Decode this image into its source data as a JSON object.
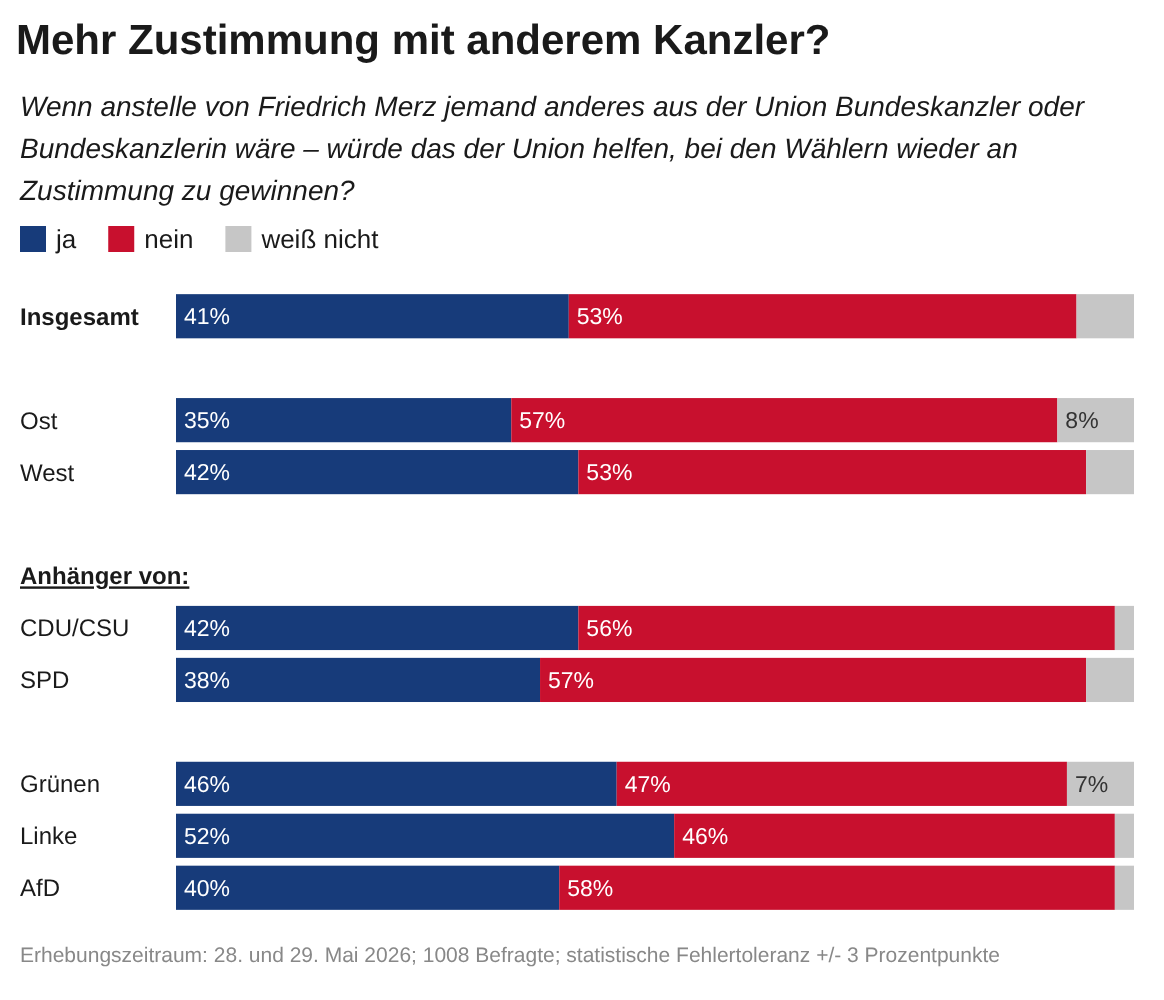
{
  "chart_data": {
    "type": "bar",
    "orientation": "horizontal",
    "stacked": true,
    "title": "Mehr Zustimmung mit anderem Kanzler?",
    "subtitle": "Wenn anstelle von Friedrich Merz jemand anderes aus der Union Bundeskanzler oder Bundeskanzlerin wäre – würde das der Union helfen, bei den Wählern wieder an Zustimmung zu gewinnen?",
    "categories": [
      "Insgesamt",
      null,
      "Ost",
      "West",
      null,
      null,
      "CDU/CSU",
      "SPD",
      null,
      "Grünen",
      "Linke",
      "AfD"
    ],
    "series": [
      {
        "name": "ja",
        "color": "#173b7a",
        "values": [
          41,
          null,
          35,
          42,
          null,
          null,
          42,
          38,
          null,
          46,
          52,
          40
        ],
        "value_labels": [
          "41%",
          null,
          "35%",
          "42%",
          null,
          null,
          "42%",
          "38%",
          null,
          "46%",
          "52%",
          "40%"
        ]
      },
      {
        "name": "nein",
        "color": "#c8102e",
        "values": [
          53,
          null,
          57,
          53,
          null,
          null,
          56,
          57,
          null,
          47,
          46,
          58
        ],
        "value_labels": [
          "53%",
          null,
          "57%",
          "53%",
          null,
          null,
          "56%",
          "57%",
          null,
          "47%",
          "46%",
          "58%"
        ]
      },
      {
        "name": "weiß nicht",
        "color": "#c6c6c6",
        "values": [
          6,
          null,
          8,
          5,
          null,
          null,
          2,
          5,
          null,
          7,
          2,
          2
        ],
        "value_labels": [
          null,
          null,
          "8%",
          null,
          null,
          null,
          null,
          null,
          null,
          "7%",
          null,
          null
        ]
      }
    ],
    "xlim": [
      0,
      100
    ],
    "tick_labels": "y",
    "legend": "top left",
    "annotations": [
      "Anhänger von:",
      "Erhebungszeitraum: 28. und 29. Mai 2026; 1008 Befragte; statistische Fehlertoleranz +/- 3 Prozentpunkte"
    ]
  }
}
